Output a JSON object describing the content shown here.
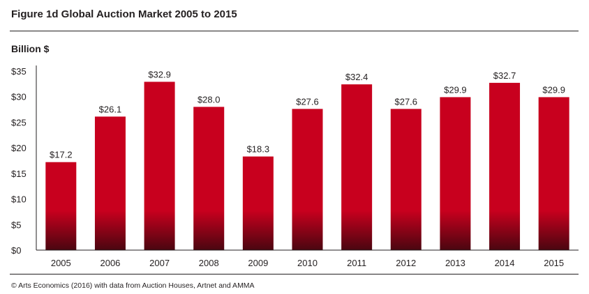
{
  "title": "Figure 1d  Global Auction Market 2005 to 2015",
  "unit_label": "Billion $",
  "source": "© Arts Economics (2016) with data from Auction Houses, Artnet and AMMA",
  "colors": {
    "bar_top": "#c8001e",
    "bar_bottom": "#4a0610",
    "axis": "#231f20"
  },
  "chart_data": {
    "type": "bar",
    "title": "Global Auction Market 2005 to 2015",
    "xlabel": "",
    "ylabel": "Billion $",
    "ylim": [
      0,
      35
    ],
    "yticks": [
      0,
      5,
      10,
      15,
      20,
      25,
      30,
      35
    ],
    "ytick_labels": [
      "$0",
      "$5",
      "$10",
      "$15",
      "$20",
      "$25",
      "$30",
      "$35"
    ],
    "categories": [
      "2005",
      "2006",
      "2007",
      "2008",
      "2009",
      "2010",
      "2011",
      "2012",
      "2013",
      "2014",
      "2015"
    ],
    "values": [
      17.2,
      26.1,
      32.9,
      28.0,
      18.3,
      27.6,
      32.4,
      27.6,
      29.9,
      32.7,
      29.9
    ],
    "value_labels": [
      "$17.2",
      "$26.1",
      "$32.9",
      "$28.0",
      "$18.3",
      "$27.6",
      "$32.4",
      "$27.6",
      "$29.9",
      "$32.7",
      "$29.9"
    ],
    "grid": false,
    "legend": "none"
  }
}
